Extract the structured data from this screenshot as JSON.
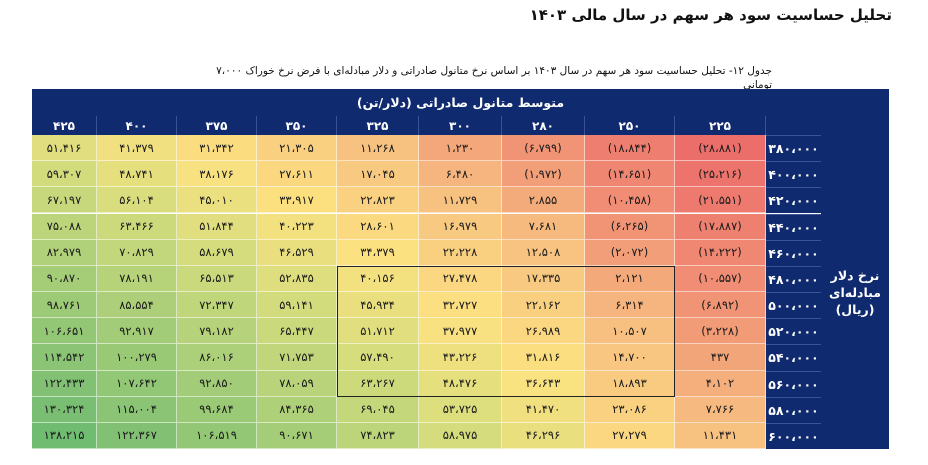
{
  "title": "تحلیل حساسیت سود هر سهم در سال مالی ۱۴۰۳",
  "caption": "جدول ۱۲- تحلیل حساسیت سود هر سهم در سال ۱۴۰۳ بر اساس نرخ متانول صادراتی و دلار مبادله‌ای با فرض نرخ خوراک ۷،۰۰۰ تومانی",
  "table": {
    "column_header_title": "متوسط متانول صادراتی (دلار/تن)",
    "row_header_title": "نرخ دلار مبادله‌ای (ریال)",
    "columns": [
      "۴۲۵",
      "۴۰۰",
      "۳۷۵",
      "۳۵۰",
      "۳۲۵",
      "۳۰۰",
      "۲۸۰",
      "۲۵۰",
      "۲۲۵"
    ],
    "rows": [
      {
        "label": "۳۸۰،۰۰۰",
        "values": [
          "۵۱،۴۱۶",
          "۴۱،۳۷۹",
          "۳۱،۳۴۲",
          "۲۱،۳۰۵",
          "۱۱،۲۶۸",
          "۱،۲۳۰",
          "(۶،۷۹۹)",
          "(۱۸،۸۴۴)",
          "(۲۸،۸۸۱)"
        ]
      },
      {
        "label": "۴۰۰،۰۰۰",
        "values": [
          "۵۹،۳۰۷",
          "۴۸،۷۴۱",
          "۳۸،۱۷۶",
          "۲۷،۶۱۱",
          "۱۷،۰۴۵",
          "۶،۴۸۰",
          "(۱،۹۷۲)",
          "(۱۴،۶۵۱)",
          "(۲۵،۲۱۶)"
        ]
      },
      {
        "label": "۴۲۰،۰۰۰",
        "values": [
          "۶۷،۱۹۷",
          "۵۶،۱۰۴",
          "۴۵،۰۱۰",
          "۳۳،۹۱۷",
          "۲۲،۸۲۳",
          "۱۱،۷۲۹",
          "۲،۸۵۵",
          "(۱۰،۴۵۸)",
          "(۲۱،۵۵۱)"
        ]
      },
      {
        "label": "۴۴۰،۰۰۰",
        "values": [
          "۷۵،۰۸۸",
          "۶۳،۴۶۶",
          "۵۱،۸۴۴",
          "۴۰،۲۲۳",
          "۲۸،۶۰۱",
          "۱۶،۹۷۹",
          "۷،۶۸۱",
          "(۶،۲۶۵)",
          "(۱۷،۸۸۷)"
        ]
      },
      {
        "label": "۴۶۰،۰۰۰",
        "values": [
          "۸۲،۹۷۹",
          "۷۰،۸۲۹",
          "۵۸،۶۷۹",
          "۴۶،۵۲۹",
          "۳۴،۳۷۹",
          "۲۲،۲۲۸",
          "۱۲،۵۰۸",
          "(۲،۰۷۲)",
          "(۱۴،۲۲۲)"
        ]
      },
      {
        "label": "۴۸۰،۰۰۰",
        "values": [
          "۹۰،۸۷۰",
          "۷۸،۱۹۱",
          "۶۵،۵۱۳",
          "۵۲،۸۳۵",
          "۴۰،۱۵۶",
          "۲۷،۴۷۸",
          "۱۷،۳۳۵",
          "۲،۱۲۱",
          "(۱۰،۵۵۷)"
        ]
      },
      {
        "label": "۵۰۰،۰۰۰",
        "values": [
          "۹۸،۷۶۱",
          "۸۵،۵۵۴",
          "۷۲،۳۴۷",
          "۵۹،۱۴۱",
          "۴۵،۹۳۴",
          "۳۲،۷۲۷",
          "۲۲،۱۶۲",
          "۶،۳۱۴",
          "(۶،۸۹۲)"
        ]
      },
      {
        "label": "۵۲۰،۰۰۰",
        "values": [
          "۱۰۶،۶۵۱",
          "۹۲،۹۱۷",
          "۷۹،۱۸۲",
          "۶۵،۴۴۷",
          "۵۱،۷۱۲",
          "۳۷،۹۷۷",
          "۲۶،۹۸۹",
          "۱۰،۵۰۷",
          "(۳،۲۲۸)"
        ]
      },
      {
        "label": "۵۴۰،۰۰۰",
        "values": [
          "۱۱۴،۵۴۲",
          "۱۰۰،۲۷۹",
          "۸۶،۰۱۶",
          "۷۱،۷۵۳",
          "۵۷،۴۹۰",
          "۴۳،۲۲۶",
          "۳۱،۸۱۶",
          "۱۴،۷۰۰",
          "۴۳۷"
        ]
      },
      {
        "label": "۵۶۰،۰۰۰",
        "values": [
          "۱۲۲،۴۳۳",
          "۱۰۷،۶۴۲",
          "۹۲،۸۵۰",
          "۷۸،۰۵۹",
          "۶۳،۲۶۷",
          "۴۸،۴۷۶",
          "۳۶،۶۴۳",
          "۱۸،۸۹۳",
          "۴،۱۰۲"
        ]
      },
      {
        "label": "۵۸۰،۰۰۰",
        "values": [
          "۱۳۰،۳۲۴",
          "۱۱۵،۰۰۴",
          "۹۹،۶۸۴",
          "۸۴،۳۶۵",
          "۶۹،۰۴۵",
          "۵۳،۷۲۵",
          "۴۱،۴۷۰",
          "۲۳،۰۸۶",
          "۷،۷۶۶"
        ]
      },
      {
        "label": "۶۰۰،۰۰۰",
        "values": [
          "۱۳۸،۲۱۵",
          "۱۲۲،۳۶۷",
          "۱۰۶،۵۱۹",
          "۹۰،۶۷۱",
          "۷۴،۸۲۳",
          "۵۸،۹۷۵",
          "۴۶،۲۹۶",
          "۲۷،۲۷۹",
          "۱۱،۴۳۱"
        ]
      }
    ]
  }
}
